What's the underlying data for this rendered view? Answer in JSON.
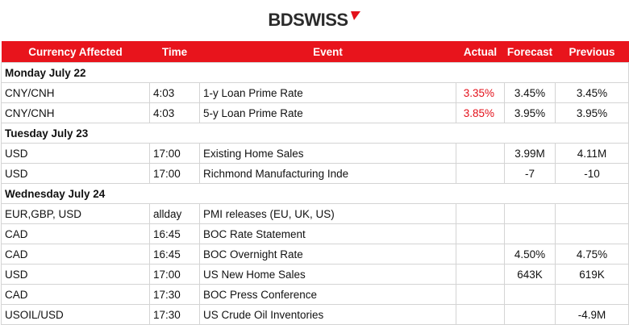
{
  "logo": "BDSWISS",
  "table": {
    "headers": [
      "Currency Affected",
      "Time",
      "Event",
      "Actual",
      "Forecast",
      "Previous"
    ],
    "sections": [
      {
        "day": "Monday July 22",
        "rows": [
          {
            "currency": "CNY/CNH",
            "time": "4:03",
            "event": "1-y Loan Prime Rate",
            "actual": "3.35%",
            "forecast": "3.45%",
            "previous": "3.45%"
          },
          {
            "currency": "CNY/CNH",
            "time": "4:03",
            "event": "5-y Loan Prime Rate",
            "actual": "3.85%",
            "forecast": "3.95%",
            "previous": "3.95%"
          }
        ]
      },
      {
        "day": "Tuesday July 23",
        "rows": [
          {
            "currency": "USD",
            "time": "17:00",
            "event": "Existing Home Sales",
            "forecast": "3.99M",
            "previous": "4.11M"
          },
          {
            "currency": "USD",
            "time": "17:00",
            "event": "Richmond Manufacturing Inde",
            "forecast": "-7",
            "previous": "-10"
          }
        ]
      },
      {
        "day": "Wednesday July 24",
        "rows": [
          {
            "currency": "EUR,GBP, USD",
            "time": "allday",
            "event": "PMI releases (EU, UK, US)"
          },
          {
            "currency": "CAD",
            "time": "16:45",
            "event": "BOC Rate Statement"
          },
          {
            "currency": "CAD",
            "time": "16:45",
            "event": "BOC Overnight Rate",
            "forecast": "4.50%",
            "previous": "4.75%"
          },
          {
            "currency": "USD",
            "time": "17:00",
            "event": "US New Home Sales",
            "forecast": "643K",
            "previous": "619K"
          },
          {
            "currency": "CAD",
            "time": "17:30",
            "event": "BOC Press Conference"
          },
          {
            "currency": "USOIL/USD",
            "time": "17:30",
            "event": "US Crude Oil Inventories",
            "previous": "-4.9M"
          }
        ]
      }
    ]
  }
}
